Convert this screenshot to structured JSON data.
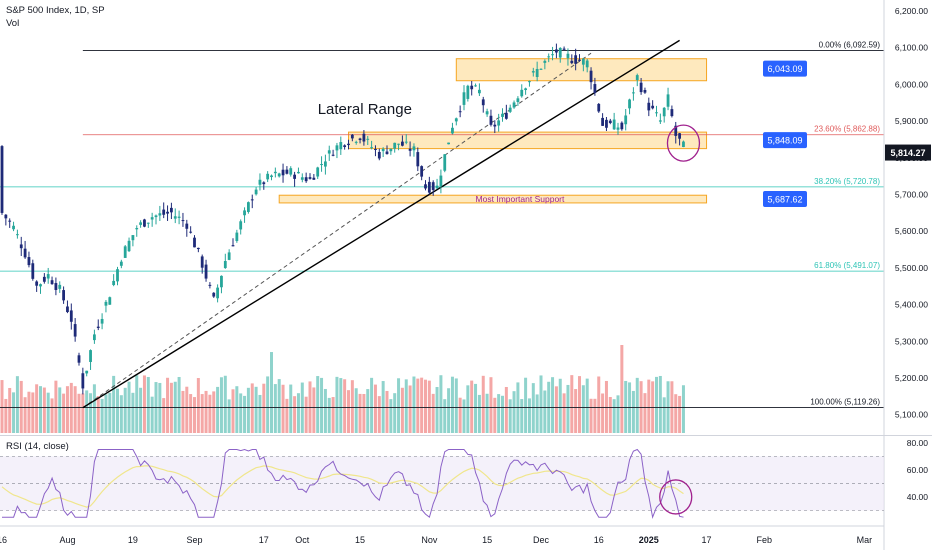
{
  "header": {
    "symbol_line": "S&P 500 Index, 1D, SP",
    "vol_label": "Vol"
  },
  "rsi_panel": {
    "label": "RSI (14, close)",
    "overbought": 70,
    "middle": 50,
    "oversold": 30,
    "ticks": [
      "80.00",
      "60.00",
      "40.00"
    ],
    "tick_values": [
      80,
      60,
      40
    ]
  },
  "colors": {
    "up": "#26a69a",
    "down": "#1e2a78",
    "vol_up": "#8fd3cc",
    "vol_down": "#f4a7a6",
    "zone_fill": "#fde1a8",
    "zone_stroke": "#f5a623",
    "fib_red": "#e05a5a",
    "fib_teal": "#2ec4b6",
    "badge_blue": "#2962ff",
    "rsi_line": "#8b62c7",
    "rsi_ma": "#f0e68c",
    "circle": "#a0218e"
  },
  "chart_data": {
    "type": "candlestick",
    "title": "S&P 500 Index, 1D, SP",
    "ylim": [
      5050,
      6230
    ],
    "y_ticks": [
      "6,200.00",
      "6,100.00",
      "6,000.00",
      "5,900.00",
      "5,800.00",
      "5,700.00",
      "5,600.00",
      "5,500.00",
      "5,400.00",
      "5,300.00",
      "5,200.00",
      "5,100.00"
    ],
    "y_tick_values": [
      6200,
      6100,
      6000,
      5900,
      5800,
      5700,
      5600,
      5500,
      5400,
      5300,
      5200,
      5100
    ],
    "x_ticks": [
      "16",
      "Aug",
      "19",
      "Sep",
      "17",
      "Oct",
      "15",
      "Nov",
      "15",
      "Dec",
      "16",
      "2025",
      "17",
      "Feb",
      "Mar"
    ],
    "x_tick_index": [
      0,
      17,
      34,
      50,
      68,
      78,
      93,
      111,
      126,
      140,
      155,
      168,
      183,
      198,
      224
    ],
    "current_price": "5,814.27",
    "price_badges": [
      {
        "text": "6,043.09",
        "value": 6043.09
      },
      {
        "text": "5,848.09",
        "value": 5848.09
      },
      {
        "text": "5,687.62",
        "value": 5687.62
      }
    ],
    "fib_levels": [
      {
        "label": "0.00% (6,092.59)",
        "value": 6092.59,
        "color": "#131722"
      },
      {
        "label": "23.60% (5,862.88)",
        "value": 5862.88,
        "color": "#e05a5a"
      },
      {
        "label": "38.20% (5,720.78)",
        "value": 5720.78,
        "color": "#2ec4b6"
      },
      {
        "label": "61.80% (5,491.07)",
        "value": 5491.07,
        "color": "#2ec4b6"
      },
      {
        "label": "100.00% (5,119.26)",
        "value": 5119.26,
        "color": "#131722"
      }
    ],
    "zones": [
      {
        "i0": 118,
        "i1": 183,
        "low": 6010,
        "high": 6070
      },
      {
        "i0": 90,
        "i1": 183,
        "low": 5825,
        "high": 5870
      },
      {
        "i0": 72,
        "i1": 183,
        "low": 5677,
        "high": 5698,
        "label": "Most Important Support"
      }
    ],
    "annotations": [
      {
        "text": "Lateral Range",
        "i": 82,
        "value": 5920
      },
      {
        "text": "Most Important Support",
        "i": 123,
        "value": 5688
      }
    ],
    "volume": {
      "max": 100
    }
  }
}
